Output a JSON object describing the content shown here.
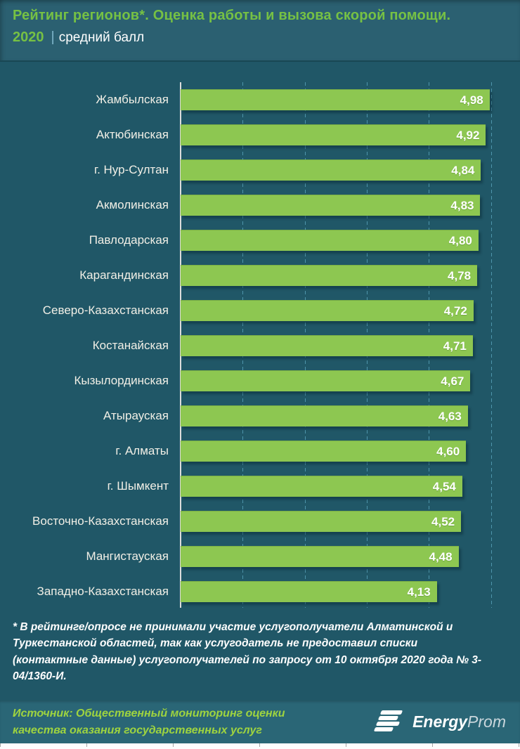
{
  "header": {
    "title": "Рейтинг регионов*. Оценка работы и вызова скорой помощи.",
    "year": "2020",
    "separator": "|",
    "subtitle": "средний балл"
  },
  "chart_data": {
    "type": "bar",
    "orientation": "horizontal",
    "title": "Рейтинг регионов*. Оценка работы и вызова скорой помощи. 2020 | средний балл",
    "xlabel": "",
    "ylabel": "",
    "categories": [
      "Жамбылская",
      "Актюбинская",
      "г. Нур-Султан",
      "Акмолинская",
      "Павлодарская",
      "Карагандинская",
      "Северо-Казахстанская",
      "Костанайская",
      "Кызылординская",
      "Атырауская",
      "г. Алматы",
      "г. Шымкент",
      "Восточно-Казахстанская",
      "Мангистауская",
      "Западно-Казахстанская"
    ],
    "values": [
      4.98,
      4.92,
      4.84,
      4.83,
      4.8,
      4.78,
      4.72,
      4.71,
      4.67,
      4.63,
      4.6,
      4.54,
      4.52,
      4.48,
      4.13
    ],
    "value_labels": [
      "4,98",
      "4,92",
      "4,84",
      "4,83",
      "4,80",
      "4,78",
      "4,72",
      "4,71",
      "4,67",
      "4,63",
      "4,60",
      "4,54",
      "4,52",
      "4,48",
      "4,13"
    ],
    "xlim": [
      0,
      5.13
    ],
    "gridlines": [
      1,
      2,
      3,
      4,
      5
    ],
    "grid_style": "dashed-vertical",
    "legend": "none",
    "bar_color": "#8DC751",
    "value_label_color": "#FFFFFF"
  },
  "footnote": {
    "text": "* В рейтинге/опросе не принимали участие услугополучатели Алматинской и Туркестанской областей, так как услугодатель не предоставил списки (контактные данные) услугополучателей по запросу от 10 октября 2020 года № 3-04/1360-И."
  },
  "source": {
    "text": "Источник: Общественный мониторинг оценки качества оказания государственных услуг",
    "logo_bold": "Energy",
    "logo_light": "Prom"
  },
  "colors": {
    "background": "#205767",
    "header_background": "#2B6071",
    "source_band_background": "#2A6676",
    "title_green": "#76C144",
    "source_green": "#9FD43F",
    "bar_green": "#8DC751",
    "gridline_blue": "#4E95AB",
    "axis_line": "#DCDCDC",
    "label_color": "#F1EFE6"
  }
}
